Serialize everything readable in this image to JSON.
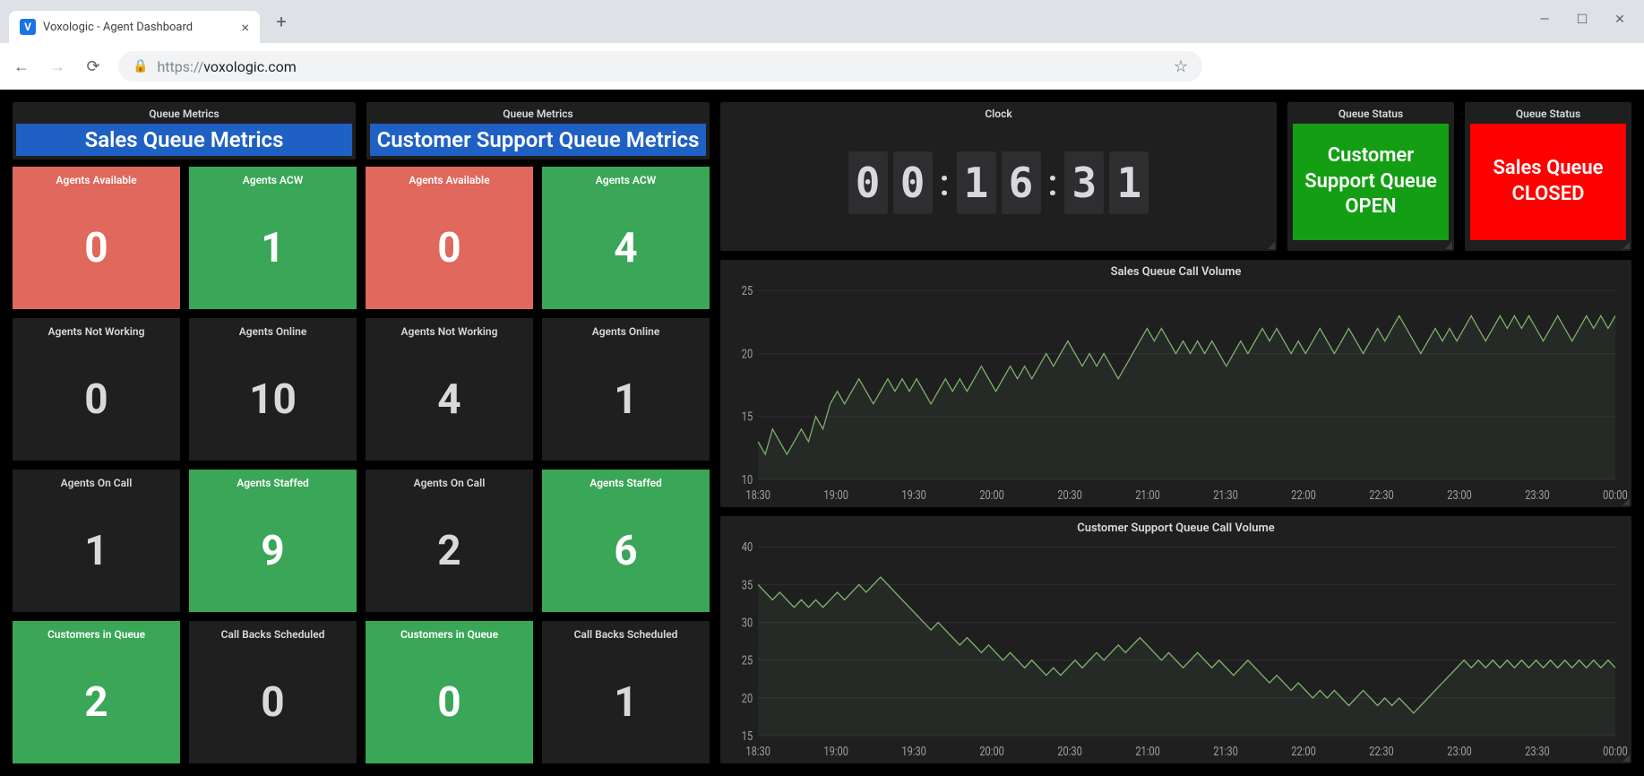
{
  "browser": {
    "tab_title": "Voxologic - Agent Dashboard",
    "url_proto": "https://",
    "url_domain": "voxologic.com"
  },
  "queue_headers": {
    "panel_label": "Queue Metrics",
    "sales": "Sales Queue Metrics",
    "support": "Customer Support Queue Metrics"
  },
  "metrics": [
    {
      "label": "Agents Available",
      "value": "0",
      "style": "red"
    },
    {
      "label": "Agents ACW",
      "value": "1",
      "style": "green"
    },
    {
      "label": "Agents Available",
      "value": "0",
      "style": "red"
    },
    {
      "label": "Agents ACW",
      "value": "4",
      "style": "green"
    },
    {
      "label": "Agents Not Working",
      "value": "0",
      "style": "dark"
    },
    {
      "label": "Agents Online",
      "value": "10",
      "style": "dark"
    },
    {
      "label": "Agents Not Working",
      "value": "4",
      "style": "dark"
    },
    {
      "label": "Agents Online",
      "value": "1",
      "style": "dark"
    },
    {
      "label": "Agents On Call",
      "value": "1",
      "style": "dark"
    },
    {
      "label": "Agents Staffed",
      "value": "9",
      "style": "green"
    },
    {
      "label": "Agents On Call",
      "value": "2",
      "style": "dark"
    },
    {
      "label": "Agents Staffed",
      "value": "6",
      "style": "green"
    },
    {
      "label": "Customers in Queue",
      "value": "2",
      "style": "green"
    },
    {
      "label": "Call Backs Scheduled",
      "value": "0",
      "style": "dark"
    },
    {
      "label": "Customers in Queue",
      "value": "0",
      "style": "green"
    },
    {
      "label": "Call Backs Scheduled",
      "value": "1",
      "style": "dark"
    }
  ],
  "clock": {
    "panel_label": "Clock",
    "digits": [
      "0",
      "0",
      "1",
      "6",
      "3",
      "1"
    ]
  },
  "status": {
    "panel_label": "Queue Status",
    "support_text": "Customer Support Queue OPEN",
    "support_state": "open",
    "sales_text": "Sales Queue CLOSED",
    "sales_state": "closed"
  },
  "charts": {
    "sales": {
      "title": "Sales Queue Call Volume",
      "ylim": [
        10,
        25
      ],
      "yticks": [
        10,
        15,
        20,
        25
      ],
      "xticks": [
        "18:30",
        "19:00",
        "19:30",
        "20:00",
        "20:30",
        "21:00",
        "21:30",
        "22:00",
        "22:30",
        "23:00",
        "23:30",
        "00:00"
      ],
      "line_color": "#7eb26d",
      "grid_color": "#2c2c2e",
      "bg": "#1f1f20",
      "values": [
        13,
        12,
        14,
        13,
        12,
        13,
        14,
        13,
        15,
        14,
        16,
        17,
        16,
        17,
        18,
        17,
        16,
        17,
        18,
        17,
        18,
        17,
        18,
        17,
        16,
        17,
        18,
        17,
        18,
        17,
        18,
        19,
        18,
        17,
        18,
        19,
        18,
        19,
        18,
        19,
        20,
        19,
        20,
        21,
        20,
        19,
        20,
        19,
        20,
        19,
        18,
        19,
        20,
        21,
        22,
        21,
        22,
        21,
        20,
        21,
        20,
        21,
        20,
        21,
        20,
        19,
        20,
        21,
        20,
        21,
        22,
        21,
        22,
        21,
        20,
        21,
        20,
        21,
        22,
        21,
        20,
        21,
        22,
        21,
        20,
        21,
        22,
        21,
        22,
        23,
        22,
        21,
        20,
        21,
        22,
        21,
        22,
        21,
        22,
        23,
        22,
        21,
        22,
        23,
        22,
        23,
        22,
        23,
        22,
        21,
        22,
        23,
        22,
        21,
        22,
        23,
        22,
        23,
        22,
        23
      ]
    },
    "support": {
      "title": "Customer Support Queue Call Volume",
      "ylim": [
        15,
        40
      ],
      "yticks": [
        15,
        20,
        25,
        30,
        35,
        40
      ],
      "xticks": [
        "18:30",
        "19:00",
        "19:30",
        "20:00",
        "20:30",
        "21:00",
        "21:30",
        "22:00",
        "22:30",
        "23:00",
        "23:30",
        "00:00"
      ],
      "line_color": "#7eb26d",
      "grid_color": "#2c2c2e",
      "bg": "#1f1f20",
      "values": [
        35,
        34,
        33,
        34,
        33,
        32,
        33,
        32,
        33,
        32,
        33,
        34,
        33,
        34,
        35,
        34,
        35,
        36,
        35,
        34,
        33,
        32,
        31,
        30,
        29,
        30,
        29,
        28,
        27,
        28,
        27,
        26,
        27,
        26,
        25,
        26,
        25,
        24,
        25,
        24,
        23,
        24,
        23,
        24,
        25,
        24,
        25,
        26,
        25,
        26,
        27,
        26,
        27,
        28,
        27,
        26,
        25,
        26,
        25,
        24,
        25,
        26,
        25,
        24,
        25,
        24,
        23,
        24,
        25,
        24,
        23,
        22,
        23,
        22,
        21,
        22,
        21,
        20,
        21,
        20,
        21,
        20,
        19,
        20,
        21,
        20,
        19,
        20,
        19,
        20,
        19,
        18,
        19,
        20,
        21,
        22,
        23,
        24,
        25,
        24,
        25,
        24,
        25,
        24,
        25,
        24,
        25,
        24,
        25,
        24,
        25,
        24,
        25,
        24,
        25,
        24,
        25,
        24,
        25,
        24
      ]
    }
  },
  "colors": {
    "panel_bg": "#1f1f20",
    "dashboard_bg": "#000000",
    "red": "#e0685c",
    "green": "#3aa657",
    "banner_blue": "#1f60c4",
    "status_green": "#139e13",
    "status_red": "#ff0000"
  }
}
